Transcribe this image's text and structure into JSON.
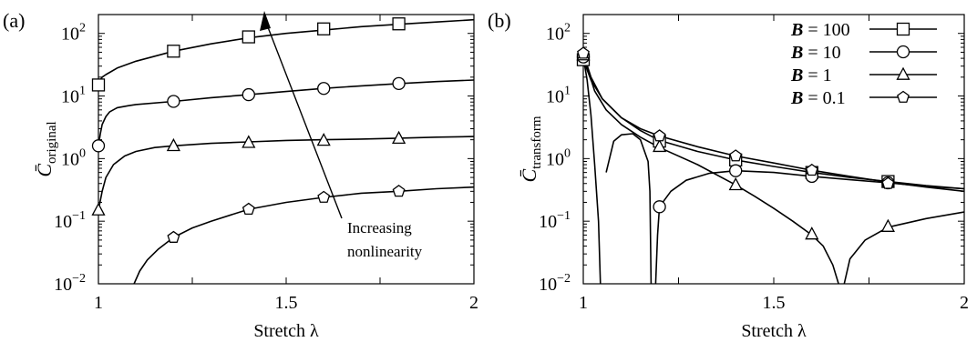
{
  "chart_data": [
    {
      "type": "line",
      "panel_label": "(a)",
      "xlabel": "Stretch λ",
      "ylabel": "C̄original",
      "ylabel_main": "C̄",
      "ylabel_sub": "original",
      "xlim": [
        1,
        2
      ],
      "ylim": [
        0.01,
        200
      ],
      "yscale": "log",
      "x_ticks": [
        "1",
        "1.5",
        "2"
      ],
      "y_ticks": [
        {
          "value": 0.01,
          "base": "10",
          "exp": "−2"
        },
        {
          "value": 0.1,
          "base": "10",
          "exp": "−1"
        },
        {
          "value": 1,
          "base": "10",
          "exp": "0"
        },
        {
          "value": 10,
          "base": "10",
          "exp": "1"
        },
        {
          "value": 100,
          "base": "10",
          "exp": "2"
        }
      ],
      "annotation": {
        "lines": [
          "Increasing",
          "nonlinearity"
        ]
      },
      "series": [
        {
          "marker": "square",
          "curve": [
            [
              1.0,
              16
            ],
            [
              1.01,
              20
            ],
            [
              1.02,
              22
            ],
            [
              1.05,
              28
            ],
            [
              1.1,
              36
            ],
            [
              1.2,
              52
            ],
            [
              1.3,
              68
            ],
            [
              1.4,
              85
            ],
            [
              1.5,
              100
            ],
            [
              1.6,
              113
            ],
            [
              1.7,
              128
            ],
            [
              1.8,
              140
            ],
            [
              1.9,
              152
            ],
            [
              2.0,
              165
            ]
          ],
          "points": [
            [
              1.0,
              15
            ],
            [
              1.2,
              52
            ],
            [
              1.4,
              88
            ],
            [
              1.6,
              118
            ],
            [
              1.8,
              142
            ]
          ]
        },
        {
          "marker": "circle",
          "curve": [
            [
              1.0,
              1.6
            ],
            [
              1.005,
              2.5
            ],
            [
              1.01,
              3.5
            ],
            [
              1.02,
              4.7
            ],
            [
              1.03,
              5.6
            ],
            [
              1.05,
              6.5
            ],
            [
              1.08,
              7.0
            ],
            [
              1.1,
              7.3
            ],
            [
              1.2,
              8.2
            ],
            [
              1.3,
              9.4
            ],
            [
              1.4,
              10.5
            ],
            [
              1.5,
              11.8
            ],
            [
              1.6,
              13.2
            ],
            [
              1.7,
              14.5
            ],
            [
              1.8,
              15.8
            ],
            [
              1.9,
              17.0
            ],
            [
              2.0,
              18.0
            ]
          ],
          "points": [
            [
              1.0,
              1.6
            ],
            [
              1.2,
              8.2
            ],
            [
              1.4,
              10.5
            ],
            [
              1.6,
              13.2
            ],
            [
              1.8,
              15.8
            ]
          ]
        },
        {
          "marker": "triangle",
          "curve": [
            [
              1.0,
              0.15
            ],
            [
              1.01,
              0.3
            ],
            [
              1.02,
              0.5
            ],
            [
              1.04,
              0.8
            ],
            [
              1.07,
              1.1
            ],
            [
              1.1,
              1.3
            ],
            [
              1.15,
              1.5
            ],
            [
              1.2,
              1.6
            ],
            [
              1.3,
              1.75
            ],
            [
              1.4,
              1.85
            ],
            [
              1.5,
              1.95
            ],
            [
              1.6,
              2.0
            ],
            [
              1.7,
              2.05
            ],
            [
              1.8,
              2.12
            ],
            [
              1.9,
              2.2
            ],
            [
              2.0,
              2.25
            ]
          ],
          "points": [
            [
              1.0,
              0.15
            ],
            [
              1.2,
              1.6
            ],
            [
              1.4,
              1.8
            ],
            [
              1.6,
              1.95
            ],
            [
              1.8,
              2.1
            ]
          ]
        },
        {
          "marker": "pentagon",
          "curve": [
            [
              1.095,
              0.01
            ],
            [
              1.11,
              0.016
            ],
            [
              1.13,
              0.024
            ],
            [
              1.16,
              0.036
            ],
            [
              1.2,
              0.055
            ],
            [
              1.25,
              0.078
            ],
            [
              1.3,
              0.1
            ],
            [
              1.4,
              0.155
            ],
            [
              1.5,
              0.2
            ],
            [
              1.6,
              0.24
            ],
            [
              1.7,
              0.28
            ],
            [
              1.8,
              0.3
            ],
            [
              1.9,
              0.33
            ],
            [
              2.0,
              0.35
            ]
          ],
          "points": [
            [
              1.2,
              0.055
            ],
            [
              1.4,
              0.155
            ],
            [
              1.6,
              0.24
            ],
            [
              1.8,
              0.3
            ]
          ]
        }
      ]
    },
    {
      "type": "line",
      "panel_label": "(b)",
      "xlabel": "Stretch λ",
      "ylabel": "C̄transform",
      "ylabel_main": "C̄",
      "ylabel_sub": "transform",
      "xlim": [
        1,
        2
      ],
      "ylim": [
        0.01,
        200
      ],
      "yscale": "log",
      "x_ticks": [
        "1",
        "1.5",
        "2"
      ],
      "y_ticks": [
        {
          "value": 0.01,
          "base": "10",
          "exp": "−2"
        },
        {
          "value": 0.1,
          "base": "10",
          "exp": "−1"
        },
        {
          "value": 1,
          "base": "10",
          "exp": "0"
        },
        {
          "value": 10,
          "base": "10",
          "exp": "1"
        },
        {
          "value": 100,
          "base": "10",
          "exp": "2"
        }
      ],
      "legend": {
        "position": "top-right",
        "entries": [
          {
            "italic": "B",
            "text": " = 100",
            "marker": "square"
          },
          {
            "italic": "B",
            "text": " = 10",
            "marker": "circle"
          },
          {
            "italic": "B",
            "text": " = 1",
            "marker": "triangle"
          },
          {
            "italic": "B",
            "text": " = 0.1",
            "marker": "pentagon"
          }
        ]
      },
      "series": [
        {
          "name": "B = 100",
          "marker": "square",
          "curves": [
            [
              [
                1.0,
                38
              ],
              [
                1.02,
                18
              ],
              [
                1.05,
                9
              ],
              [
                1.1,
                4.5
              ],
              [
                1.15,
                2.8
              ],
              [
                1.2,
                1.95
              ],
              [
                1.3,
                1.3
              ],
              [
                1.4,
                0.95
              ],
              [
                1.5,
                0.75
              ],
              [
                1.6,
                0.6
              ],
              [
                1.7,
                0.5
              ],
              [
                1.8,
                0.43
              ],
              [
                1.9,
                0.37
              ],
              [
                2.0,
                0.33
              ]
            ]
          ],
          "points": [
            [
              1.0,
              38
            ],
            [
              1.2,
              1.9
            ],
            [
              1.4,
              0.95
            ],
            [
              1.6,
              0.6
            ],
            [
              1.8,
              0.43
            ]
          ]
        },
        {
          "name": "B = 10",
          "marker": "circle",
          "curves": [
            [
              [
                1.0,
                42
              ],
              [
                1.01,
                18
              ],
              [
                1.02,
                5
              ],
              [
                1.03,
                0.8
              ],
              [
                1.04,
                0.1
              ],
              [
                1.045,
                0.01
              ]
            ],
            [
              [
                1.06,
                0.6
              ],
              [
                1.08,
                1.9
              ],
              [
                1.1,
                2.4
              ],
              [
                1.13,
                2.5
              ],
              [
                1.15,
                2.0
              ],
              [
                1.17,
                0.9
              ],
              [
                1.175,
                0.3
              ],
              [
                1.178,
                0.01
              ]
            ],
            [
              [
                1.19,
                0.01
              ],
              [
                1.195,
                0.06
              ],
              [
                1.2,
                0.17
              ],
              [
                1.23,
                0.3
              ],
              [
                1.27,
                0.45
              ],
              [
                1.33,
                0.58
              ],
              [
                1.4,
                0.64
              ],
              [
                1.5,
                0.6
              ],
              [
                1.6,
                0.52
              ],
              [
                1.7,
                0.46
              ],
              [
                1.8,
                0.41
              ],
              [
                1.9,
                0.36
              ],
              [
                2.0,
                0.33
              ]
            ]
          ],
          "points": [
            [
              1.0,
              42
            ],
            [
              1.2,
              0.17
            ],
            [
              1.4,
              0.64
            ],
            [
              1.6,
              0.52
            ],
            [
              1.8,
              0.41
            ]
          ]
        },
        {
          "name": "B = 1",
          "marker": "triangle",
          "curves": [
            [
              [
                1.0,
                45
              ],
              [
                1.03,
                12
              ],
              [
                1.06,
                6
              ],
              [
                1.1,
                3.5
              ],
              [
                1.15,
                2.2
              ],
              [
                1.2,
                1.5
              ],
              [
                1.3,
                0.8
              ],
              [
                1.4,
                0.38
              ],
              [
                1.45,
                0.25
              ],
              [
                1.5,
                0.16
              ],
              [
                1.55,
                0.1
              ],
              [
                1.6,
                0.06
              ],
              [
                1.63,
                0.04
              ],
              [
                1.655,
                0.02
              ],
              [
                1.67,
                0.01
              ]
            ],
            [
              [
                1.685,
                0.01
              ],
              [
                1.7,
                0.025
              ],
              [
                1.74,
                0.05
              ],
              [
                1.8,
                0.08
              ],
              [
                1.9,
                0.11
              ],
              [
                2.0,
                0.14
              ]
            ]
          ],
          "points": [
            [
              1.0,
              45
            ],
            [
              1.2,
              1.55
            ],
            [
              1.4,
              0.38
            ],
            [
              1.6,
              0.062
            ],
            [
              1.8,
              0.082
            ]
          ]
        },
        {
          "name": "B = 0.1",
          "marker": "pentagon",
          "curves": [
            [
              [
                1.0,
                48
              ],
              [
                1.02,
                20
              ],
              [
                1.05,
                9
              ],
              [
                1.1,
                4.5
              ],
              [
                1.15,
                3
              ],
              [
                1.2,
                2.3
              ],
              [
                1.3,
                1.55
              ],
              [
                1.4,
                1.1
              ],
              [
                1.5,
                0.85
              ],
              [
                1.6,
                0.65
              ],
              [
                1.7,
                0.52
              ],
              [
                1.8,
                0.42
              ],
              [
                1.9,
                0.35
              ],
              [
                2.0,
                0.3
              ]
            ]
          ],
          "points": [
            [
              1.0,
              48
            ],
            [
              1.2,
              2.3
            ],
            [
              1.4,
              1.1
            ],
            [
              1.6,
              0.65
            ],
            [
              1.8,
              0.4
            ]
          ]
        }
      ]
    }
  ]
}
